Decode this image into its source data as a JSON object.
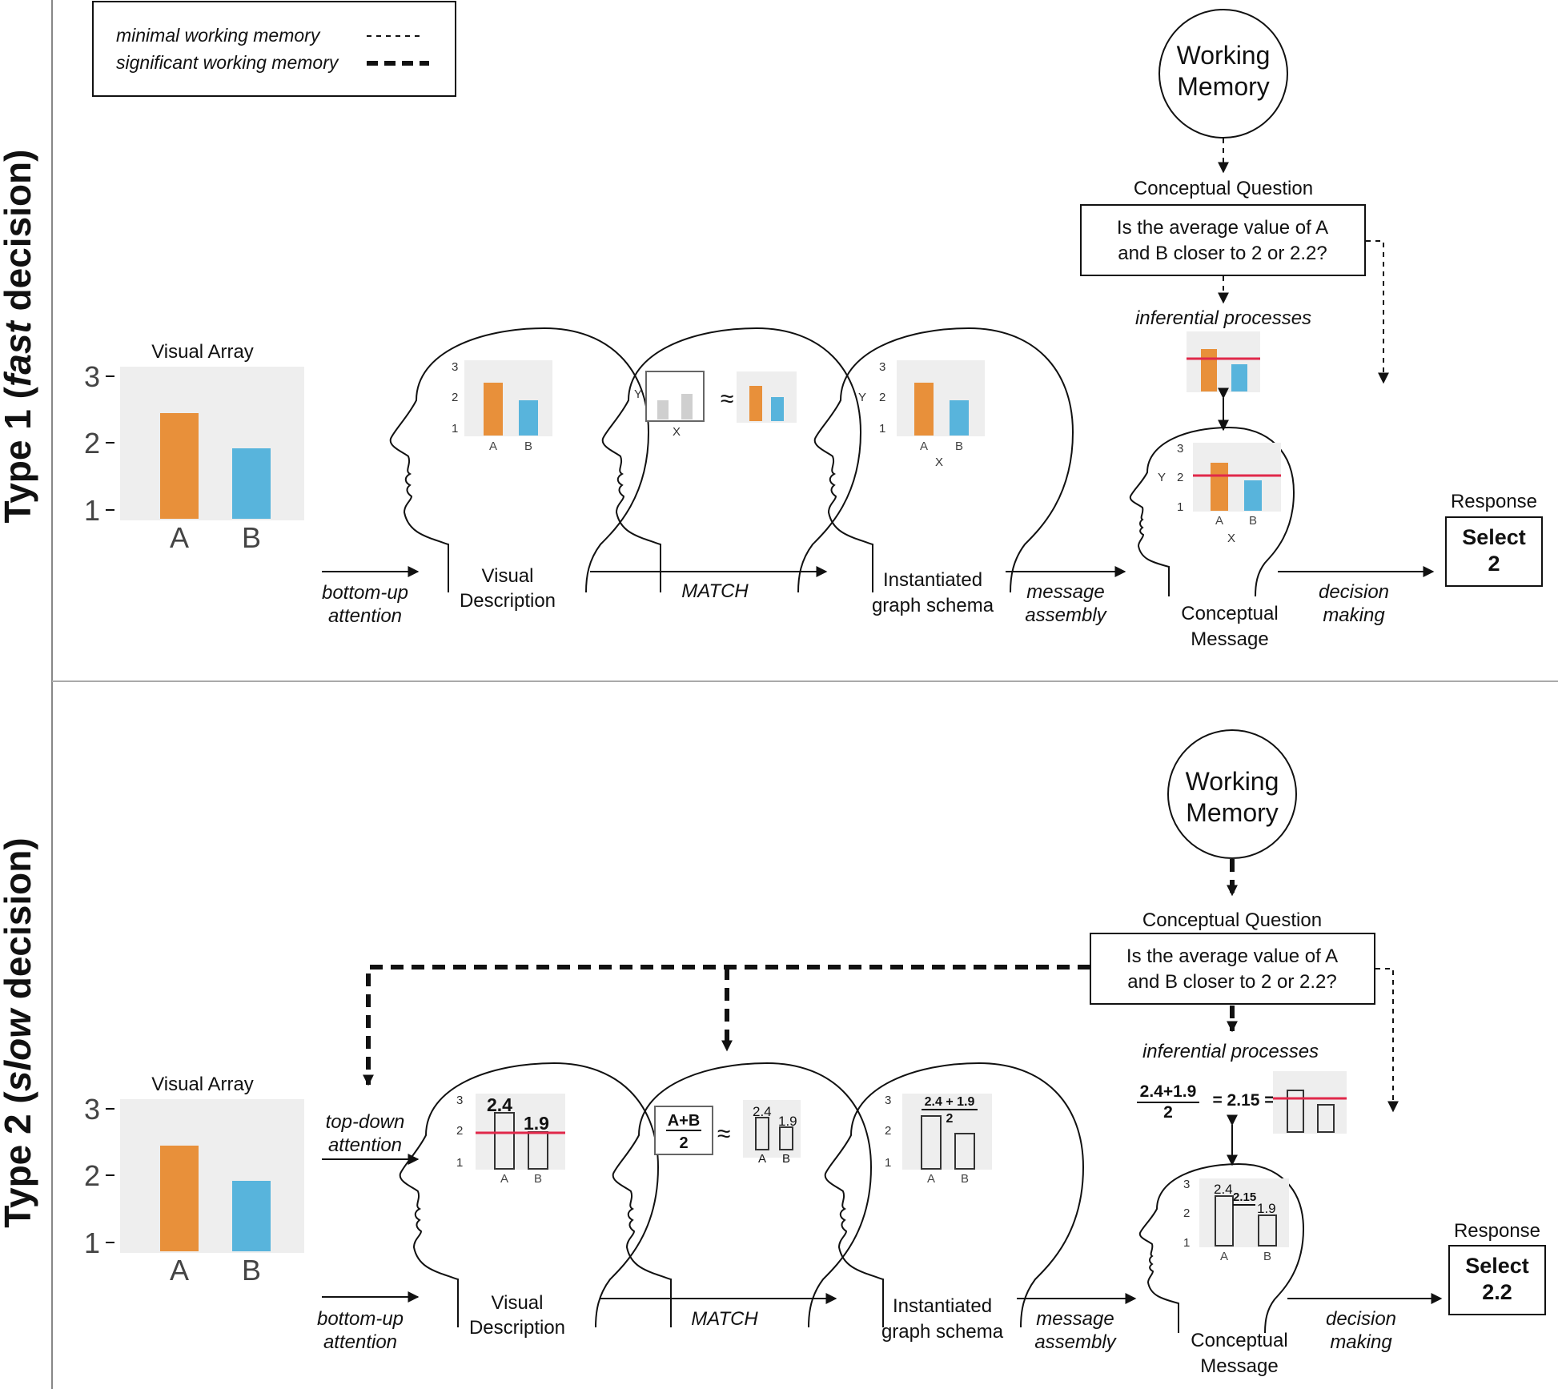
{
  "legend": {
    "minimal": "minimal working memory",
    "significant": "significant working memory"
  },
  "row1": {
    "title_pre": "Type 1 (",
    "title_em": "fast",
    "title_post": " decision)",
    "working_memory": [
      "Working",
      "Memory"
    ],
    "cq_title": "Conceptual Question",
    "cq_text": [
      "Is the average value of A",
      "and B closer to 2 or 2.2?"
    ],
    "inferential": "inferential processes",
    "visual_array": "Visual  Array",
    "bottom_up": [
      "bottom-up",
      "attention"
    ],
    "visual_desc": [
      "Visual",
      "Description"
    ],
    "match": "MATCH",
    "instantiated": [
      "Instantiated",
      "graph schema"
    ],
    "message_assembly": [
      "message",
      "assembly"
    ],
    "conceptual_message": [
      "Conceptual",
      "Message"
    ],
    "decision_making": [
      "decision",
      "making"
    ],
    "response_label": "Response",
    "response": [
      "Select",
      "2"
    ]
  },
  "row2": {
    "title_pre": "Type 2 (",
    "title_em": "slow",
    "title_post": " decision)",
    "working_memory": [
      "Working",
      "Memory"
    ],
    "cq_title": "Conceptual Question",
    "cq_text": [
      "Is the average value of A",
      "and B closer to 2 or 2.2?"
    ],
    "inferential": "inferential processes",
    "visual_array": "Visual  Array",
    "top_down": [
      "top-down",
      "attention"
    ],
    "bottom_up": [
      "bottom-up",
      "attention"
    ],
    "visual_desc": [
      "Visual",
      "Description"
    ],
    "match": "MATCH",
    "instantiated": [
      "Instantiated",
      "graph schema"
    ],
    "message_assembly": [
      "message",
      "assembly"
    ],
    "conceptual_message": [
      "Conceptual",
      "Message"
    ],
    "decision_making": [
      "decision",
      "making"
    ],
    "response_label": "Response",
    "response": [
      "Select",
      "2.2"
    ],
    "formula_num": "A+B",
    "formula_den": "2",
    "sum_num": "2.4+1.9",
    "sum_den": "2",
    "sum_result": "= 2.15 =",
    "val_a": "2.4",
    "val_b": "1.9",
    "val_avg": "2.15",
    "schema_num": "2.4 + 1.9",
    "schema_den": "2"
  },
  "chart": {
    "y_ticks": [
      "1",
      "2",
      "3"
    ],
    "categories": [
      "A",
      "B"
    ],
    "axis_x": "X",
    "axis_y": "Y",
    "approx": "≈"
  },
  "colors": {
    "orange": "#e8903a",
    "blue": "#58b4dc",
    "red_line": "#e0284a",
    "panel": "#eeeeee"
  }
}
